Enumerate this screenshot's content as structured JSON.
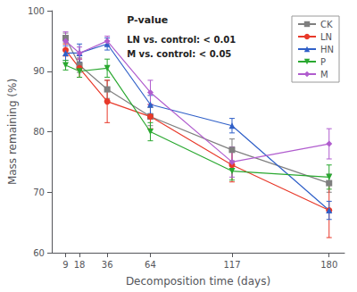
{
  "chart_data": {
    "type": "line",
    "xlabel": "Decomposition time (days)",
    "ylabel": "Mass remaining (%)",
    "x": [
      9,
      18,
      36,
      64,
      117,
      180
    ],
    "series": [
      {
        "name": "CK",
        "color": "#7f7f7f",
        "marker": "square",
        "values": [
          95.5,
          91.0,
          87.0,
          82.5,
          77.0,
          71.5
        ],
        "yerr": [
          0.8,
          1.2,
          1.5,
          1.5,
          1.8,
          1.5
        ]
      },
      {
        "name": "LN",
        "color": "#e8392a",
        "marker": "circle",
        "values": [
          93.5,
          90.5,
          85.0,
          82.5,
          74.5,
          67.0
        ],
        "yerr": [
          1.0,
          1.5,
          3.5,
          2.0,
          2.8,
          4.5
        ]
      },
      {
        "name": "HN",
        "color": "#3060c8",
        "marker": "triangle-up",
        "values": [
          93.0,
          93.0,
          94.5,
          84.5,
          81.0,
          67.0
        ],
        "yerr": [
          1.2,
          1.5,
          1.0,
          1.5,
          1.2,
          1.5
        ]
      },
      {
        "name": "P",
        "color": "#2aa830",
        "marker": "triangle-down",
        "values": [
          91.0,
          90.0,
          90.5,
          80.0,
          73.5,
          72.5
        ],
        "yerr": [
          0.8,
          1.0,
          1.5,
          1.5,
          1.5,
          2.0
        ]
      },
      {
        "name": "M",
        "color": "#b05cce",
        "marker": "diamond",
        "values": [
          95.0,
          93.0,
          95.0,
          86.5,
          75.0,
          78.0
        ],
        "yerr": [
          1.5,
          1.0,
          0.8,
          2.0,
          2.5,
          2.5
        ]
      }
    ],
    "xlim": [
      0,
      190
    ],
    "xticks": [
      9,
      18,
      36,
      64,
      117,
      180
    ],
    "ylim": [
      60,
      100
    ],
    "yticks": [
      60,
      70,
      80,
      90,
      100
    ],
    "annotations": [
      "P-value",
      "LN vs. control: < 0.01",
      "M vs. control: < 0.05"
    ],
    "legend": "upper right",
    "grid": false
  }
}
